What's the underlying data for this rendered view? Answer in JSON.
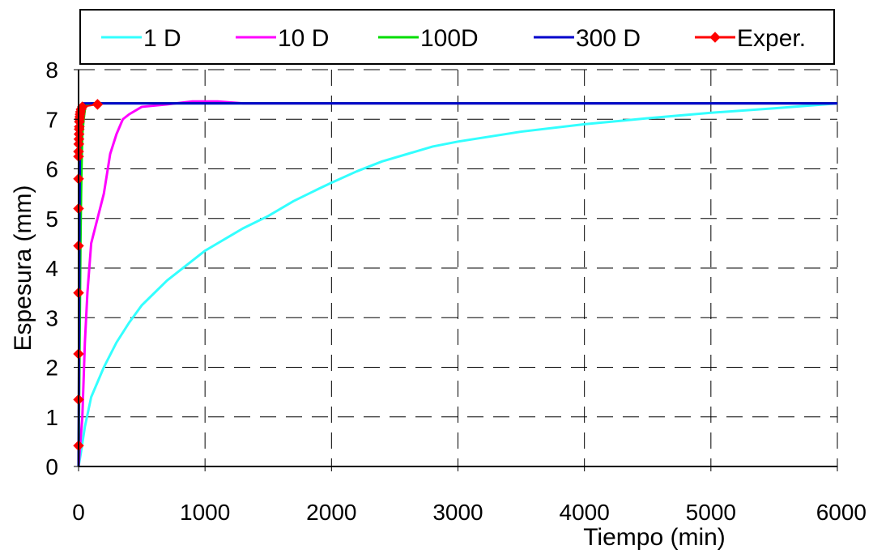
{
  "chart_data": {
    "type": "line",
    "title": "",
    "xlabel": "Tiempo (min)",
    "ylabel": "Espesura (mm)",
    "xlim": [
      0,
      6000
    ],
    "ylim": [
      0,
      8
    ],
    "x_ticks": [
      "0",
      "1000",
      "2000",
      "3000",
      "4000",
      "5000",
      "6000"
    ],
    "y_ticks": [
      "0",
      "1",
      "2",
      "3",
      "4",
      "5",
      "6",
      "7",
      "8"
    ],
    "grid": "dashed horizontal and vertical",
    "legend_position": "top",
    "series": [
      {
        "name": "1 D",
        "color": "#33ffff",
        "marker": "none",
        "points": [
          [
            0,
            0
          ],
          [
            20,
            0.3
          ],
          [
            50,
            0.8
          ],
          [
            100,
            1.4
          ],
          [
            150,
            1.7
          ],
          [
            200,
            2.0
          ],
          [
            300,
            2.5
          ],
          [
            400,
            2.9
          ],
          [
            500,
            3.25
          ],
          [
            600,
            3.5
          ],
          [
            700,
            3.75
          ],
          [
            800,
            3.95
          ],
          [
            900,
            4.15
          ],
          [
            1000,
            4.35
          ],
          [
            1100,
            4.5
          ],
          [
            1200,
            4.65
          ],
          [
            1300,
            4.8
          ],
          [
            1500,
            5.05
          ],
          [
            1700,
            5.35
          ],
          [
            1900,
            5.6
          ],
          [
            2000,
            5.72
          ],
          [
            2200,
            5.95
          ],
          [
            2400,
            6.15
          ],
          [
            2600,
            6.3
          ],
          [
            2800,
            6.45
          ],
          [
            3000,
            6.55
          ],
          [
            3500,
            6.75
          ],
          [
            4000,
            6.9
          ],
          [
            4500,
            7.02
          ],
          [
            5000,
            7.13
          ],
          [
            5500,
            7.22
          ],
          [
            6000,
            7.32
          ]
        ]
      },
      {
        "name": "10 D",
        "color": "#ff00ff",
        "marker": "none",
        "points": [
          [
            0,
            0
          ],
          [
            30,
            1.0
          ],
          [
            50,
            2.5
          ],
          [
            70,
            3.5
          ],
          [
            100,
            4.5
          ],
          [
            150,
            5.0
          ],
          [
            200,
            5.5
          ],
          [
            250,
            6.3
          ],
          [
            300,
            6.7
          ],
          [
            350,
            7.0
          ],
          [
            400,
            7.1
          ],
          [
            500,
            7.25
          ],
          [
            700,
            7.3
          ],
          [
            900,
            7.36
          ],
          [
            1100,
            7.36
          ],
          [
            1300,
            7.32
          ],
          [
            2000,
            7.32
          ],
          [
            4000,
            7.32
          ],
          [
            6000,
            7.32
          ]
        ]
      },
      {
        "name": "100D",
        "color": "#00dd00",
        "marker": "none",
        "points": [
          [
            0,
            0
          ],
          [
            5,
            1.5
          ],
          [
            10,
            3.0
          ],
          [
            15,
            4.5
          ],
          [
            20,
            5.5
          ],
          [
            25,
            6.2
          ],
          [
            30,
            6.7
          ],
          [
            40,
            7.0
          ],
          [
            50,
            7.2
          ],
          [
            60,
            7.3
          ],
          [
            100,
            7.32
          ],
          [
            6000,
            7.32
          ]
        ]
      },
      {
        "name": "300 D",
        "color": "#0000cc",
        "marker": "none",
        "points": [
          [
            0,
            0
          ],
          [
            3,
            2.0
          ],
          [
            5,
            3.5
          ],
          [
            7,
            5.0
          ],
          [
            10,
            6.2
          ],
          [
            15,
            6.9
          ],
          [
            20,
            7.2
          ],
          [
            30,
            7.32
          ],
          [
            6000,
            7.32
          ]
        ]
      },
      {
        "name": "Exper.",
        "color": "#ff0000",
        "marker": "diamond",
        "points": [
          [
            0,
            0.42
          ],
          [
            0,
            1.35
          ],
          [
            0,
            2.27
          ],
          [
            0,
            3.5
          ],
          [
            0,
            4.45
          ],
          [
            0,
            5.2
          ],
          [
            0,
            5.8
          ],
          [
            0,
            6.25
          ],
          [
            0,
            6.35
          ],
          [
            2,
            6.5
          ],
          [
            3,
            6.6
          ],
          [
            4,
            6.7
          ],
          [
            5,
            6.8
          ],
          [
            6,
            6.85
          ],
          [
            7,
            6.95
          ],
          [
            8,
            7.0
          ],
          [
            10,
            7.05
          ],
          [
            12,
            7.1
          ],
          [
            15,
            7.15
          ],
          [
            20,
            7.2
          ],
          [
            30,
            7.25
          ],
          [
            150,
            7.3
          ]
        ]
      }
    ]
  }
}
